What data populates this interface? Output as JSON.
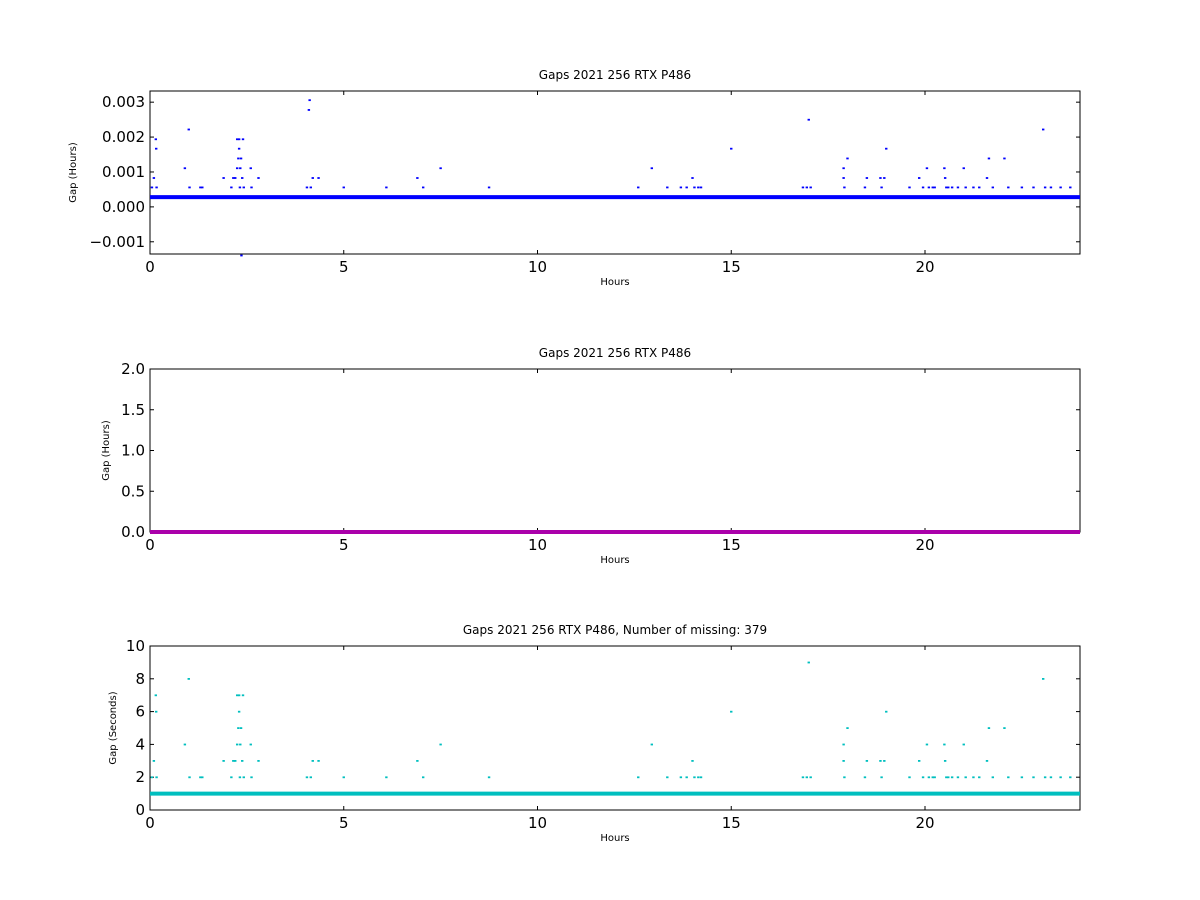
{
  "chart_data": [
    {
      "type": "scatter",
      "title": "Gaps 2021 256 RTX  P486",
      "xlabel": "Hours",
      "ylabel": "Gap (Hours)",
      "xlim": [
        0,
        24
      ],
      "ylim": [
        -0.00135,
        0.00332
      ],
      "xticks": [
        "0",
        "5",
        "10",
        "15",
        "20"
      ],
      "yticks": [
        "−0.001",
        "0.000",
        "0.001",
        "0.002",
        "0.003"
      ],
      "color": "#0000ff",
      "baseline": 0.000278,
      "points": [
        [
          0.05,
          0.00056
        ],
        [
          0.1,
          0.00083
        ],
        [
          0.15,
          0.00194
        ],
        [
          0.16,
          0.00167
        ],
        [
          0.17,
          0.00056
        ],
        [
          0.9,
          0.00111
        ],
        [
          1.0,
          0.00222
        ],
        [
          1.02,
          0.00056
        ],
        [
          1.3,
          0.00056
        ],
        [
          1.35,
          0.00056
        ],
        [
          1.9,
          0.00083
        ],
        [
          2.1,
          0.00056
        ],
        [
          2.15,
          0.00083
        ],
        [
          2.2,
          0.00083
        ],
        [
          2.25,
          0.00111
        ],
        [
          2.25,
          0.00194
        ],
        [
          2.28,
          0.00139
        ],
        [
          2.3,
          0.00194
        ],
        [
          2.3,
          0.00167
        ],
        [
          2.32,
          0.00056
        ],
        [
          2.33,
          0.00111
        ],
        [
          2.35,
          0.00139
        ],
        [
          2.36,
          -0.00139
        ],
        [
          2.38,
          0.00083
        ],
        [
          2.4,
          0.00194
        ],
        [
          2.42,
          0.00056
        ],
        [
          2.6,
          0.00111
        ],
        [
          2.62,
          0.00056
        ],
        [
          2.8,
          0.00083
        ],
        [
          4.05,
          0.00056
        ],
        [
          4.1,
          0.00278
        ],
        [
          4.12,
          0.00306
        ],
        [
          4.15,
          0.00056
        ],
        [
          4.2,
          0.00083
        ],
        [
          4.35,
          0.00083
        ],
        [
          5.0,
          0.00056
        ],
        [
          6.1,
          0.00056
        ],
        [
          6.9,
          0.00083
        ],
        [
          7.05,
          0.00056
        ],
        [
          7.5,
          0.00111
        ],
        [
          8.75,
          0.00056
        ],
        [
          12.6,
          0.00056
        ],
        [
          12.95,
          0.00111
        ],
        [
          13.35,
          0.00056
        ],
        [
          13.7,
          0.00056
        ],
        [
          13.85,
          0.00056
        ],
        [
          14.0,
          0.00083
        ],
        [
          14.05,
          0.00056
        ],
        [
          14.15,
          0.00056
        ],
        [
          14.22,
          0.00056
        ],
        [
          15.0,
          0.00167
        ],
        [
          16.85,
          0.00056
        ],
        [
          16.95,
          0.00056
        ],
        [
          17.0,
          0.0025
        ],
        [
          17.05,
          0.00056
        ],
        [
          17.9,
          0.00111
        ],
        [
          17.9,
          0.00083
        ],
        [
          17.92,
          0.00056
        ],
        [
          18.0,
          0.00139
        ],
        [
          18.45,
          0.00056
        ],
        [
          18.5,
          0.00083
        ],
        [
          18.85,
          0.00083
        ],
        [
          18.88,
          0.00056
        ],
        [
          18.95,
          0.00083
        ],
        [
          19.0,
          0.00167
        ],
        [
          19.6,
          0.00056
        ],
        [
          19.85,
          0.00083
        ],
        [
          19.95,
          0.00056
        ],
        [
          20.05,
          0.00111
        ],
        [
          20.1,
          0.00056
        ],
        [
          20.2,
          0.00056
        ],
        [
          20.25,
          0.00056
        ],
        [
          20.5,
          0.00111
        ],
        [
          20.52,
          0.00083
        ],
        [
          20.55,
          0.00056
        ],
        [
          20.6,
          0.00056
        ],
        [
          20.7,
          0.00056
        ],
        [
          20.85,
          0.00056
        ],
        [
          21.0,
          0.00111
        ],
        [
          21.05,
          0.00056
        ],
        [
          21.25,
          0.00056
        ],
        [
          21.4,
          0.00056
        ],
        [
          21.6,
          0.00083
        ],
        [
          21.65,
          0.00139
        ],
        [
          21.75,
          0.00056
        ],
        [
          22.05,
          0.00139
        ],
        [
          22.15,
          0.00056
        ],
        [
          22.5,
          0.00056
        ],
        [
          22.8,
          0.00056
        ],
        [
          23.05,
          0.00222
        ],
        [
          23.1,
          0.00056
        ],
        [
          23.25,
          0.00056
        ],
        [
          23.5,
          0.00056
        ],
        [
          23.75,
          0.00056
        ]
      ]
    },
    {
      "type": "line",
      "title": "Gaps 2021 256 RTX  P486",
      "xlabel": "Hours",
      "ylabel": "Gap (Hours)",
      "xlim": [
        0,
        24
      ],
      "ylim": [
        0,
        2.0
      ],
      "xticks": [
        "0",
        "5",
        "10",
        "15",
        "20"
      ],
      "yticks": [
        "0.0",
        "0.5",
        "1.0",
        "1.5",
        "2.0"
      ],
      "color": "#aa00aa",
      "baseline": 0.0003,
      "points": []
    },
    {
      "type": "scatter",
      "title": "Gaps 2021 256 RTX  P486, Number of missing: 379",
      "xlabel": "Hours",
      "ylabel": "Gap (Seconds)",
      "xlim": [
        0,
        24
      ],
      "ylim": [
        0,
        10
      ],
      "xticks": [
        "0",
        "5",
        "10",
        "15",
        "20"
      ],
      "yticks": [
        "0",
        "2",
        "4",
        "6",
        "8",
        "10"
      ],
      "color": "#00bfbf",
      "baseline": 1,
      "points": [
        [
          0.05,
          2
        ],
        [
          0.1,
          3
        ],
        [
          0.15,
          7
        ],
        [
          0.16,
          6
        ],
        [
          0.17,
          2
        ],
        [
          0.9,
          4
        ],
        [
          1.0,
          8
        ],
        [
          1.02,
          2
        ],
        [
          1.3,
          2
        ],
        [
          1.35,
          2
        ],
        [
          1.9,
          3
        ],
        [
          2.1,
          2
        ],
        [
          2.15,
          3
        ],
        [
          2.2,
          3
        ],
        [
          2.25,
          4
        ],
        [
          2.25,
          7
        ],
        [
          2.28,
          5
        ],
        [
          2.3,
          7
        ],
        [
          2.3,
          6
        ],
        [
          2.32,
          2
        ],
        [
          2.33,
          4
        ],
        [
          2.35,
          5
        ],
        [
          2.38,
          3
        ],
        [
          2.4,
          7
        ],
        [
          2.42,
          2
        ],
        [
          2.6,
          4
        ],
        [
          2.62,
          2
        ],
        [
          2.8,
          3
        ],
        [
          4.05,
          2
        ],
        [
          4.15,
          2
        ],
        [
          4.2,
          3
        ],
        [
          4.35,
          3
        ],
        [
          5.0,
          2
        ],
        [
          6.1,
          2
        ],
        [
          6.9,
          3
        ],
        [
          7.05,
          2
        ],
        [
          7.5,
          4
        ],
        [
          8.75,
          2
        ],
        [
          12.6,
          2
        ],
        [
          12.95,
          4
        ],
        [
          13.35,
          2
        ],
        [
          13.7,
          2
        ],
        [
          13.85,
          2
        ],
        [
          14.0,
          3
        ],
        [
          14.05,
          2
        ],
        [
          14.15,
          2
        ],
        [
          14.22,
          2
        ],
        [
          15.0,
          6
        ],
        [
          16.85,
          2
        ],
        [
          16.95,
          2
        ],
        [
          17.0,
          9
        ],
        [
          17.05,
          2
        ],
        [
          17.9,
          4
        ],
        [
          17.9,
          3
        ],
        [
          17.92,
          2
        ],
        [
          18.0,
          5
        ],
        [
          18.45,
          2
        ],
        [
          18.5,
          3
        ],
        [
          18.85,
          3
        ],
        [
          18.88,
          2
        ],
        [
          18.95,
          3
        ],
        [
          19.0,
          6
        ],
        [
          19.6,
          2
        ],
        [
          19.85,
          3
        ],
        [
          19.95,
          2
        ],
        [
          20.05,
          4
        ],
        [
          20.1,
          2
        ],
        [
          20.2,
          2
        ],
        [
          20.25,
          2
        ],
        [
          20.5,
          4
        ],
        [
          20.52,
          3
        ],
        [
          20.55,
          2
        ],
        [
          20.6,
          2
        ],
        [
          20.7,
          2
        ],
        [
          20.85,
          2
        ],
        [
          21.0,
          4
        ],
        [
          21.05,
          2
        ],
        [
          21.25,
          2
        ],
        [
          21.4,
          2
        ],
        [
          21.6,
          3
        ],
        [
          21.65,
          5
        ],
        [
          21.75,
          2
        ],
        [
          22.05,
          5
        ],
        [
          22.15,
          2
        ],
        [
          22.5,
          2
        ],
        [
          22.8,
          2
        ],
        [
          23.05,
          8
        ],
        [
          23.1,
          2
        ],
        [
          23.25,
          2
        ],
        [
          23.5,
          2
        ],
        [
          23.75,
          2
        ]
      ]
    }
  ]
}
